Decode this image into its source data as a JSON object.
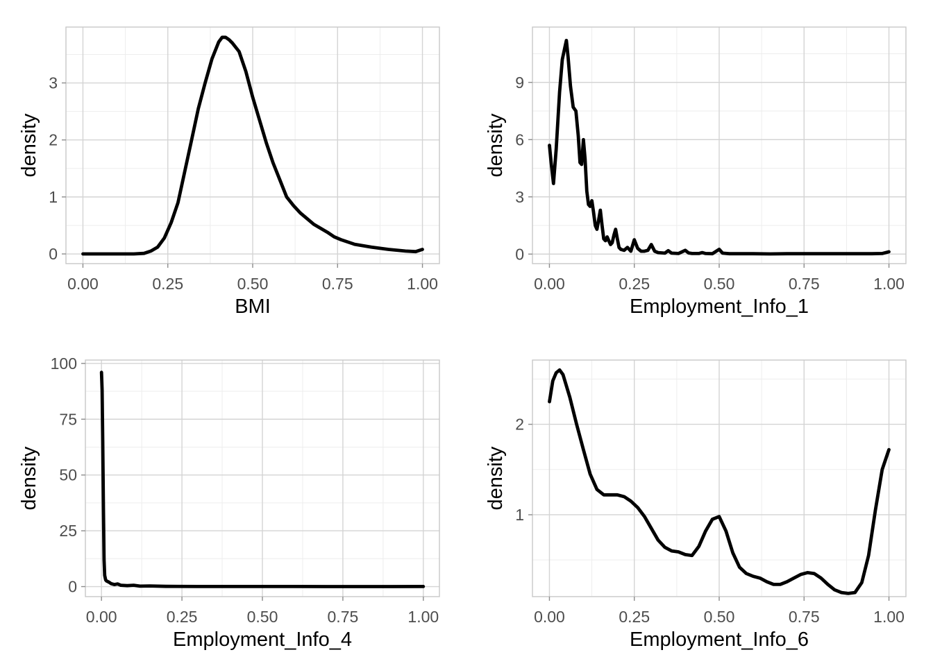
{
  "chart_data": [
    {
      "type": "line",
      "title": "",
      "xlabel": "BMI",
      "ylabel": "density",
      "xlim": [
        -0.05,
        1.05
      ],
      "ylim": [
        -0.17,
        3.98
      ],
      "xticks": [
        0,
        0.25,
        0.5,
        0.75,
        1
      ],
      "xtick_labels": [
        "0.00",
        "0.25",
        "0.50",
        "0.75",
        "1.00"
      ],
      "yticks": [
        0,
        1,
        2,
        3
      ],
      "ytick_labels": [
        "0",
        "1",
        "2",
        "3"
      ],
      "grid": true,
      "series": [
        {
          "x": [
            0,
            0.05,
            0.1,
            0.15,
            0.18,
            0.2,
            0.22,
            0.24,
            0.26,
            0.28,
            0.3,
            0.32,
            0.34,
            0.36,
            0.38,
            0.4,
            0.41,
            0.42,
            0.43,
            0.44,
            0.46,
            0.48,
            0.5,
            0.52,
            0.54,
            0.56,
            0.58,
            0.6,
            0.62,
            0.64,
            0.66,
            0.68,
            0.7,
            0.72,
            0.74,
            0.76,
            0.8,
            0.85,
            0.9,
            0.95,
            0.98,
            1.0
          ],
          "y": [
            0,
            0,
            0,
            0,
            0.01,
            0.05,
            0.12,
            0.28,
            0.55,
            0.9,
            1.45,
            2.0,
            2.55,
            3.0,
            3.42,
            3.72,
            3.8,
            3.8,
            3.76,
            3.7,
            3.55,
            3.2,
            2.75,
            2.35,
            1.95,
            1.6,
            1.3,
            1.0,
            0.85,
            0.72,
            0.62,
            0.52,
            0.45,
            0.38,
            0.3,
            0.25,
            0.17,
            0.12,
            0.08,
            0.05,
            0.04,
            0.08
          ]
        }
      ]
    },
    {
      "type": "line",
      "title": "",
      "xlabel": "Employment_Info_1",
      "ylabel": "density",
      "xlim": [
        -0.05,
        1.05
      ],
      "ylim": [
        -0.5,
        11.9
      ],
      "xticks": [
        0,
        0.25,
        0.5,
        0.75,
        1
      ],
      "xtick_labels": [
        "0.00",
        "0.25",
        "0.50",
        "0.75",
        "1.00"
      ],
      "yticks": [
        0,
        3,
        6,
        9
      ],
      "ytick_labels": [
        "0",
        "3",
        "6",
        "9"
      ],
      "grid": true,
      "series": [
        {
          "x": [
            0,
            0.005,
            0.012,
            0.02,
            0.03,
            0.038,
            0.045,
            0.05,
            0.055,
            0.062,
            0.07,
            0.078,
            0.085,
            0.09,
            0.095,
            0.1,
            0.105,
            0.11,
            0.115,
            0.12,
            0.125,
            0.13,
            0.135,
            0.14,
            0.145,
            0.15,
            0.155,
            0.16,
            0.165,
            0.17,
            0.175,
            0.18,
            0.185,
            0.19,
            0.195,
            0.2,
            0.205,
            0.21,
            0.22,
            0.23,
            0.24,
            0.25,
            0.26,
            0.27,
            0.28,
            0.29,
            0.3,
            0.31,
            0.32,
            0.34,
            0.35,
            0.36,
            0.38,
            0.4,
            0.41,
            0.42,
            0.44,
            0.45,
            0.46,
            0.48,
            0.5,
            0.51,
            0.53,
            0.55,
            0.6,
            0.65,
            0.7,
            0.75,
            0.8,
            0.85,
            0.9,
            0.95,
            0.98,
            1.0
          ],
          "y": [
            5.7,
            4.8,
            3.7,
            5.5,
            8.5,
            10.2,
            10.8,
            11.2,
            10.3,
            8.8,
            7.7,
            7.5,
            6.2,
            4.8,
            4.7,
            6.0,
            5.0,
            3.3,
            2.6,
            2.5,
            2.8,
            2.2,
            1.5,
            1.3,
            1.8,
            2.3,
            1.5,
            0.8,
            0.7,
            0.9,
            0.7,
            0.5,
            0.6,
            1.0,
            1.3,
            0.8,
            0.35,
            0.25,
            0.2,
            0.35,
            0.15,
            0.75,
            0.3,
            0.15,
            0.15,
            0.2,
            0.5,
            0.15,
            0.08,
            0.05,
            0.18,
            0.05,
            0.03,
            0.2,
            0.06,
            0.03,
            0.03,
            0.08,
            0.03,
            0.02,
            0.25,
            0.05,
            0.02,
            0.02,
            0.02,
            0.01,
            0.02,
            0.02,
            0.02,
            0.02,
            0.02,
            0.02,
            0.03,
            0.12
          ]
        }
      ]
    },
    {
      "type": "line",
      "title": "",
      "xlabel": "Employment_Info_4",
      "ylabel": "density",
      "xlim": [
        -0.05,
        1.05
      ],
      "ylim": [
        -4.5,
        101.5
      ],
      "xticks": [
        0,
        0.25,
        0.5,
        0.75,
        1
      ],
      "xtick_labels": [
        "0.00",
        "0.25",
        "0.50",
        "0.75",
        "1.00"
      ],
      "yticks": [
        0,
        25,
        50,
        75,
        100
      ],
      "ytick_labels": [
        "0",
        "25",
        "50",
        "75",
        "100"
      ],
      "grid": true,
      "series": [
        {
          "x": [
            0,
            0.002,
            0.004,
            0.006,
            0.008,
            0.01,
            0.013,
            0.016,
            0.02,
            0.025,
            0.03,
            0.04,
            0.05,
            0.06,
            0.08,
            0.1,
            0.12,
            0.15,
            0.2,
            0.3,
            0.4,
            0.5,
            0.6,
            0.7,
            0.8,
            0.9,
            1.0
          ],
          "y": [
            96,
            88,
            65,
            35,
            12,
            5,
            3,
            2.5,
            2.2,
            1.8,
            1.3,
            0.9,
            1.2,
            0.6,
            0.4,
            0.6,
            0.2,
            0.3,
            0.1,
            0.05,
            0.05,
            0.03,
            0.03,
            0.02,
            0.02,
            0.02,
            0.05
          ]
        }
      ]
    },
    {
      "type": "line",
      "title": "",
      "xlabel": "Employment_Info_6",
      "ylabel": "density",
      "xlim": [
        -0.05,
        1.05
      ],
      "ylim": [
        0.095,
        2.71
      ],
      "xticks": [
        0,
        0.25,
        0.5,
        0.75,
        1
      ],
      "xtick_labels": [
        "0.00",
        "0.25",
        "0.50",
        "0.75",
        "1.00"
      ],
      "yticks": [
        1,
        2
      ],
      "ytick_labels": [
        "1",
        "2"
      ],
      "grid": true,
      "series": [
        {
          "x": [
            0,
            0.01,
            0.02,
            0.03,
            0.04,
            0.06,
            0.08,
            0.1,
            0.12,
            0.14,
            0.16,
            0.18,
            0.2,
            0.22,
            0.24,
            0.26,
            0.28,
            0.3,
            0.32,
            0.34,
            0.36,
            0.38,
            0.4,
            0.42,
            0.44,
            0.46,
            0.48,
            0.5,
            0.52,
            0.54,
            0.56,
            0.58,
            0.6,
            0.62,
            0.64,
            0.66,
            0.68,
            0.7,
            0.72,
            0.74,
            0.76,
            0.78,
            0.8,
            0.82,
            0.84,
            0.86,
            0.88,
            0.9,
            0.92,
            0.94,
            0.96,
            0.98,
            1.0
          ],
          "y": [
            2.25,
            2.48,
            2.57,
            2.6,
            2.55,
            2.3,
            2.0,
            1.72,
            1.45,
            1.28,
            1.22,
            1.22,
            1.22,
            1.2,
            1.15,
            1.08,
            0.98,
            0.85,
            0.72,
            0.64,
            0.6,
            0.59,
            0.56,
            0.55,
            0.65,
            0.82,
            0.95,
            0.98,
            0.82,
            0.58,
            0.42,
            0.35,
            0.32,
            0.3,
            0.26,
            0.23,
            0.23,
            0.26,
            0.3,
            0.34,
            0.36,
            0.35,
            0.3,
            0.23,
            0.17,
            0.14,
            0.13,
            0.14,
            0.25,
            0.55,
            1.05,
            1.5,
            1.72
          ]
        }
      ]
    }
  ]
}
